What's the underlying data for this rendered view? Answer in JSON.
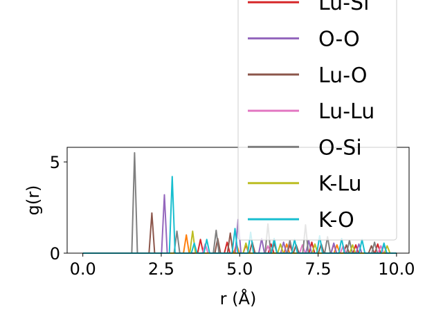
{
  "chart_data": {
    "type": "line",
    "xlabel": "r (Å)",
    "ylabel": "g(r)",
    "xlim": [
      -0.5,
      10.4
    ],
    "ylim": [
      0,
      5.8
    ],
    "xticks": [
      {
        "value": 0.0,
        "label": "0.0"
      },
      {
        "value": 2.5,
        "label": "2.5"
      },
      {
        "value": 5.0,
        "label": "5.0"
      },
      {
        "value": 7.5,
        "label": "7.5"
      },
      {
        "value": 10.0,
        "label": "10.0"
      }
    ],
    "yticks": [
      {
        "value": 0,
        "label": "0"
      },
      {
        "value": 5,
        "label": "5"
      }
    ],
    "legend_position": "upper-right",
    "series": [
      {
        "name": "Lu-Si",
        "color": "#d62728",
        "peaks": [
          [
            3.75,
            0.75
          ],
          [
            4.6,
            0.6
          ],
          [
            5.2,
            0.45
          ],
          [
            6.0,
            0.5
          ],
          [
            6.6,
            0.45
          ],
          [
            7.3,
            0.6
          ],
          [
            8.0,
            0.5
          ],
          [
            8.7,
            0.45
          ],
          [
            9.4,
            0.5
          ]
        ]
      },
      {
        "name": "O-O",
        "color": "#9467bd",
        "peaks": [
          [
            2.6,
            3.2
          ],
          [
            4.95,
            1.85
          ],
          [
            5.7,
            0.8
          ],
          [
            6.4,
            0.6
          ],
          [
            7.2,
            0.7
          ],
          [
            8.0,
            0.55
          ],
          [
            8.8,
            0.5
          ],
          [
            9.6,
            0.45
          ]
        ]
      },
      {
        "name": "Lu-O",
        "color": "#8c564b",
        "peaks": [
          [
            2.2,
            2.2
          ],
          [
            4.3,
            0.8
          ],
          [
            4.7,
            1.1
          ],
          [
            5.4,
            0.6
          ],
          [
            6.1,
            0.55
          ],
          [
            6.8,
            0.45
          ],
          [
            7.6,
            0.5
          ],
          [
            8.4,
            0.45
          ],
          [
            9.2,
            0.4
          ]
        ]
      },
      {
        "name": "Lu-Lu",
        "color": "#e377c2",
        "peaks": [
          [
            3.9,
            0.5
          ],
          [
            5.9,
            0.4
          ],
          [
            7.0,
            0.45
          ],
          [
            8.3,
            0.4
          ],
          [
            9.5,
            0.4
          ]
        ]
      },
      {
        "name": "O-Si",
        "color": "#7f7f7f",
        "peaks": [
          [
            1.65,
            5.5
          ],
          [
            3.0,
            1.2
          ],
          [
            4.25,
            1.25
          ],
          [
            5.9,
            1.6
          ],
          [
            6.6,
            0.7
          ],
          [
            7.1,
            1.55
          ],
          [
            7.8,
            0.9
          ],
          [
            8.5,
            0.7
          ],
          [
            9.3,
            0.6
          ]
        ]
      },
      {
        "name": "K-Lu",
        "color": "#bcbd22",
        "peaks": [
          [
            3.5,
            1.2
          ],
          [
            5.2,
            0.55
          ],
          [
            6.3,
            0.5
          ],
          [
            7.4,
            0.5
          ],
          [
            8.6,
            0.45
          ],
          [
            9.7,
            0.4
          ]
        ]
      },
      {
        "name": "K-O",
        "color": "#17becf",
        "peaks": [
          [
            2.85,
            4.2
          ],
          [
            3.55,
            0.55
          ],
          [
            3.95,
            0.75
          ],
          [
            4.85,
            1.35
          ],
          [
            5.35,
            1.15
          ],
          [
            6.1,
            0.8
          ],
          [
            6.75,
            0.75
          ],
          [
            7.55,
            0.95
          ],
          [
            8.25,
            0.8
          ],
          [
            8.9,
            0.75
          ],
          [
            9.6,
            0.55
          ]
        ]
      }
    ],
    "extra_peaks": [
      {
        "color": "#ff7f0e",
        "peaks": [
          [
            3.3,
            1.0
          ],
          [
            4.9,
            0.5
          ],
          [
            6.5,
            0.5
          ],
          [
            8.1,
            0.45
          ]
        ]
      }
    ]
  }
}
